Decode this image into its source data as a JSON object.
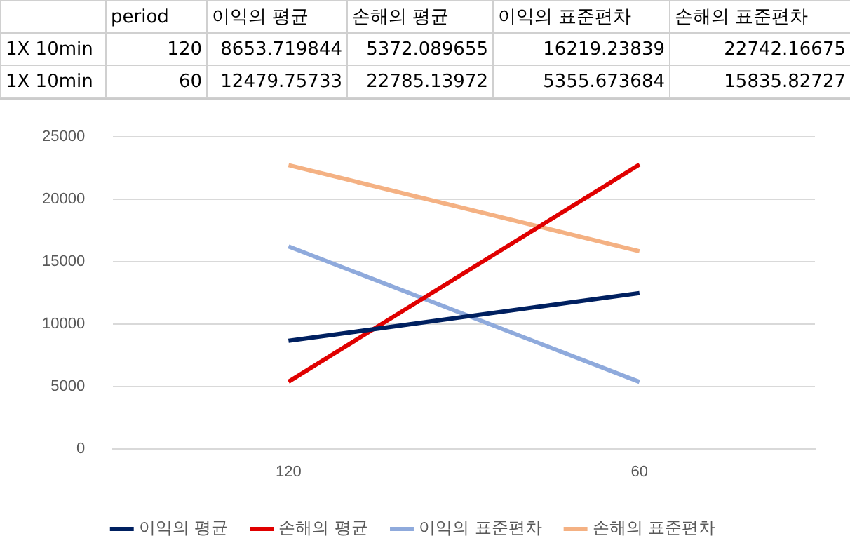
{
  "chart_data": {
    "type": "line",
    "categories": [
      "120",
      "60"
    ],
    "series": [
      {
        "name": "이익의 평균",
        "color": "#002060",
        "values": [
          8653.719844,
          12479.75733
        ]
      },
      {
        "name": "손해의 평균",
        "color": "#e00000",
        "values": [
          5372.089655,
          22785.13972
        ]
      },
      {
        "name": "이익의 표준편차",
        "color": "#8faadc",
        "values": [
          16219.23839,
          5355.673684
        ]
      },
      {
        "name": "손해의 표준편차",
        "color": "#f4b183",
        "values": [
          22742.16675,
          15835.82727
        ]
      }
    ],
    "ylim": [
      0,
      25000
    ],
    "yticks": [
      0,
      5000,
      10000,
      15000,
      20000,
      25000
    ],
    "grid": "y",
    "legend": "bottom",
    "marker": "none",
    "line_style": "solid",
    "annotations": [
      "period",
      "1X 10min",
      "8653.719844",
      "5372.089655",
      "16219.23839",
      "22742.16675",
      "1X 10min",
      "12479.75733",
      "22785.13972",
      "5355.673684",
      "15835.82727"
    ]
  }
}
